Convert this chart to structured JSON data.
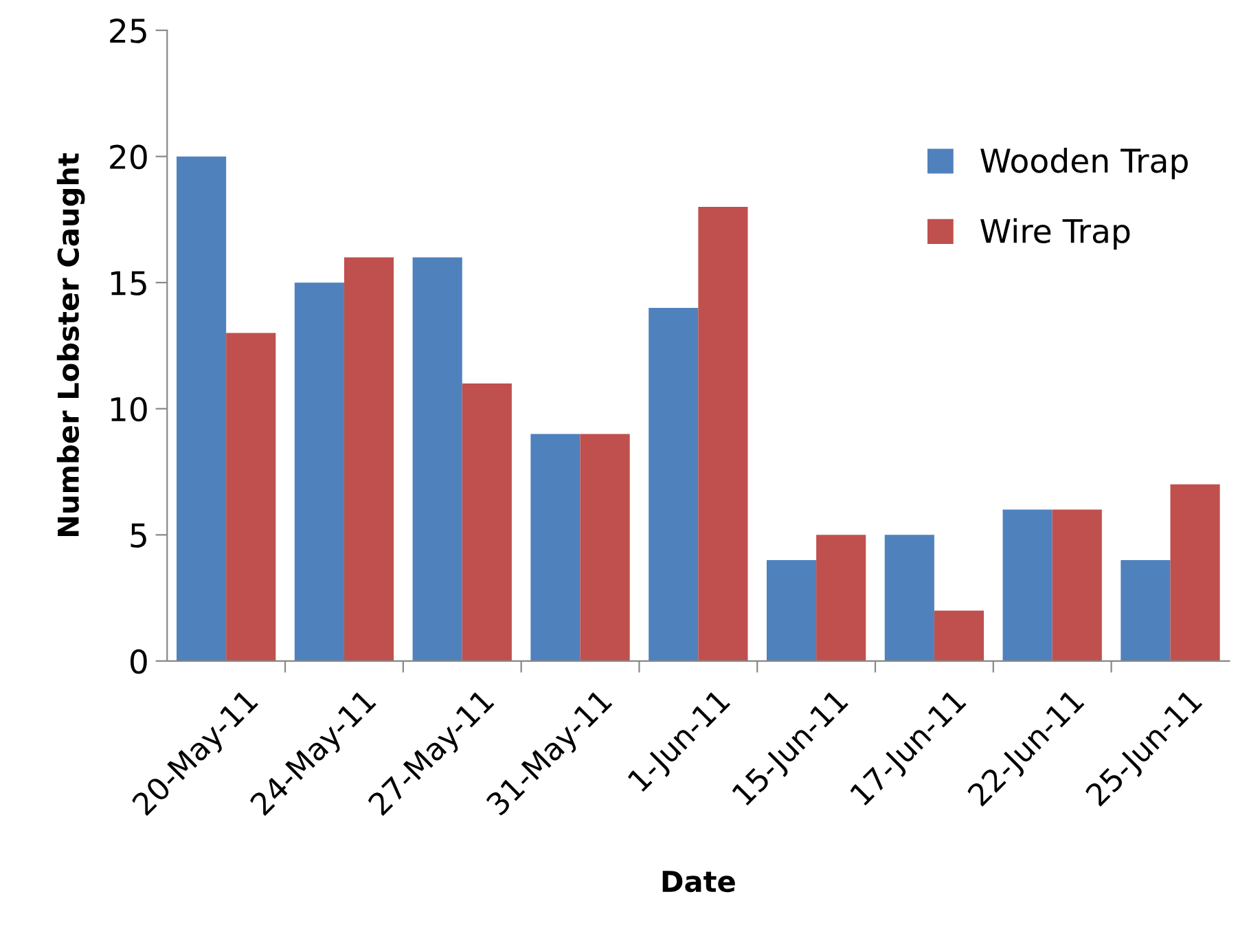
{
  "chart_data": {
    "type": "bar",
    "xlabel": "Date",
    "ylabel": "Number Lobster Caught",
    "categories": [
      "20-May-11",
      "24-May-11",
      "27-May-11",
      "31-May-11",
      "1-Jun-11",
      "15-Jun-11",
      "17-Jun-11",
      "22-Jun-11",
      "25-Jun-11"
    ],
    "series": [
      {
        "name": "Wooden Trap",
        "color": "#4f81bd",
        "values": [
          20,
          15,
          16,
          9,
          14,
          4,
          5,
          6,
          4
        ]
      },
      {
        "name": "Wire Trap",
        "color": "#c0504d",
        "values": [
          13,
          16,
          11,
          9,
          18,
          5,
          2,
          6,
          7
        ]
      }
    ],
    "ylim": [
      0,
      25
    ],
    "yticks": [
      0,
      5,
      10,
      15,
      20,
      25
    ],
    "grid": false,
    "legend": "top right"
  }
}
